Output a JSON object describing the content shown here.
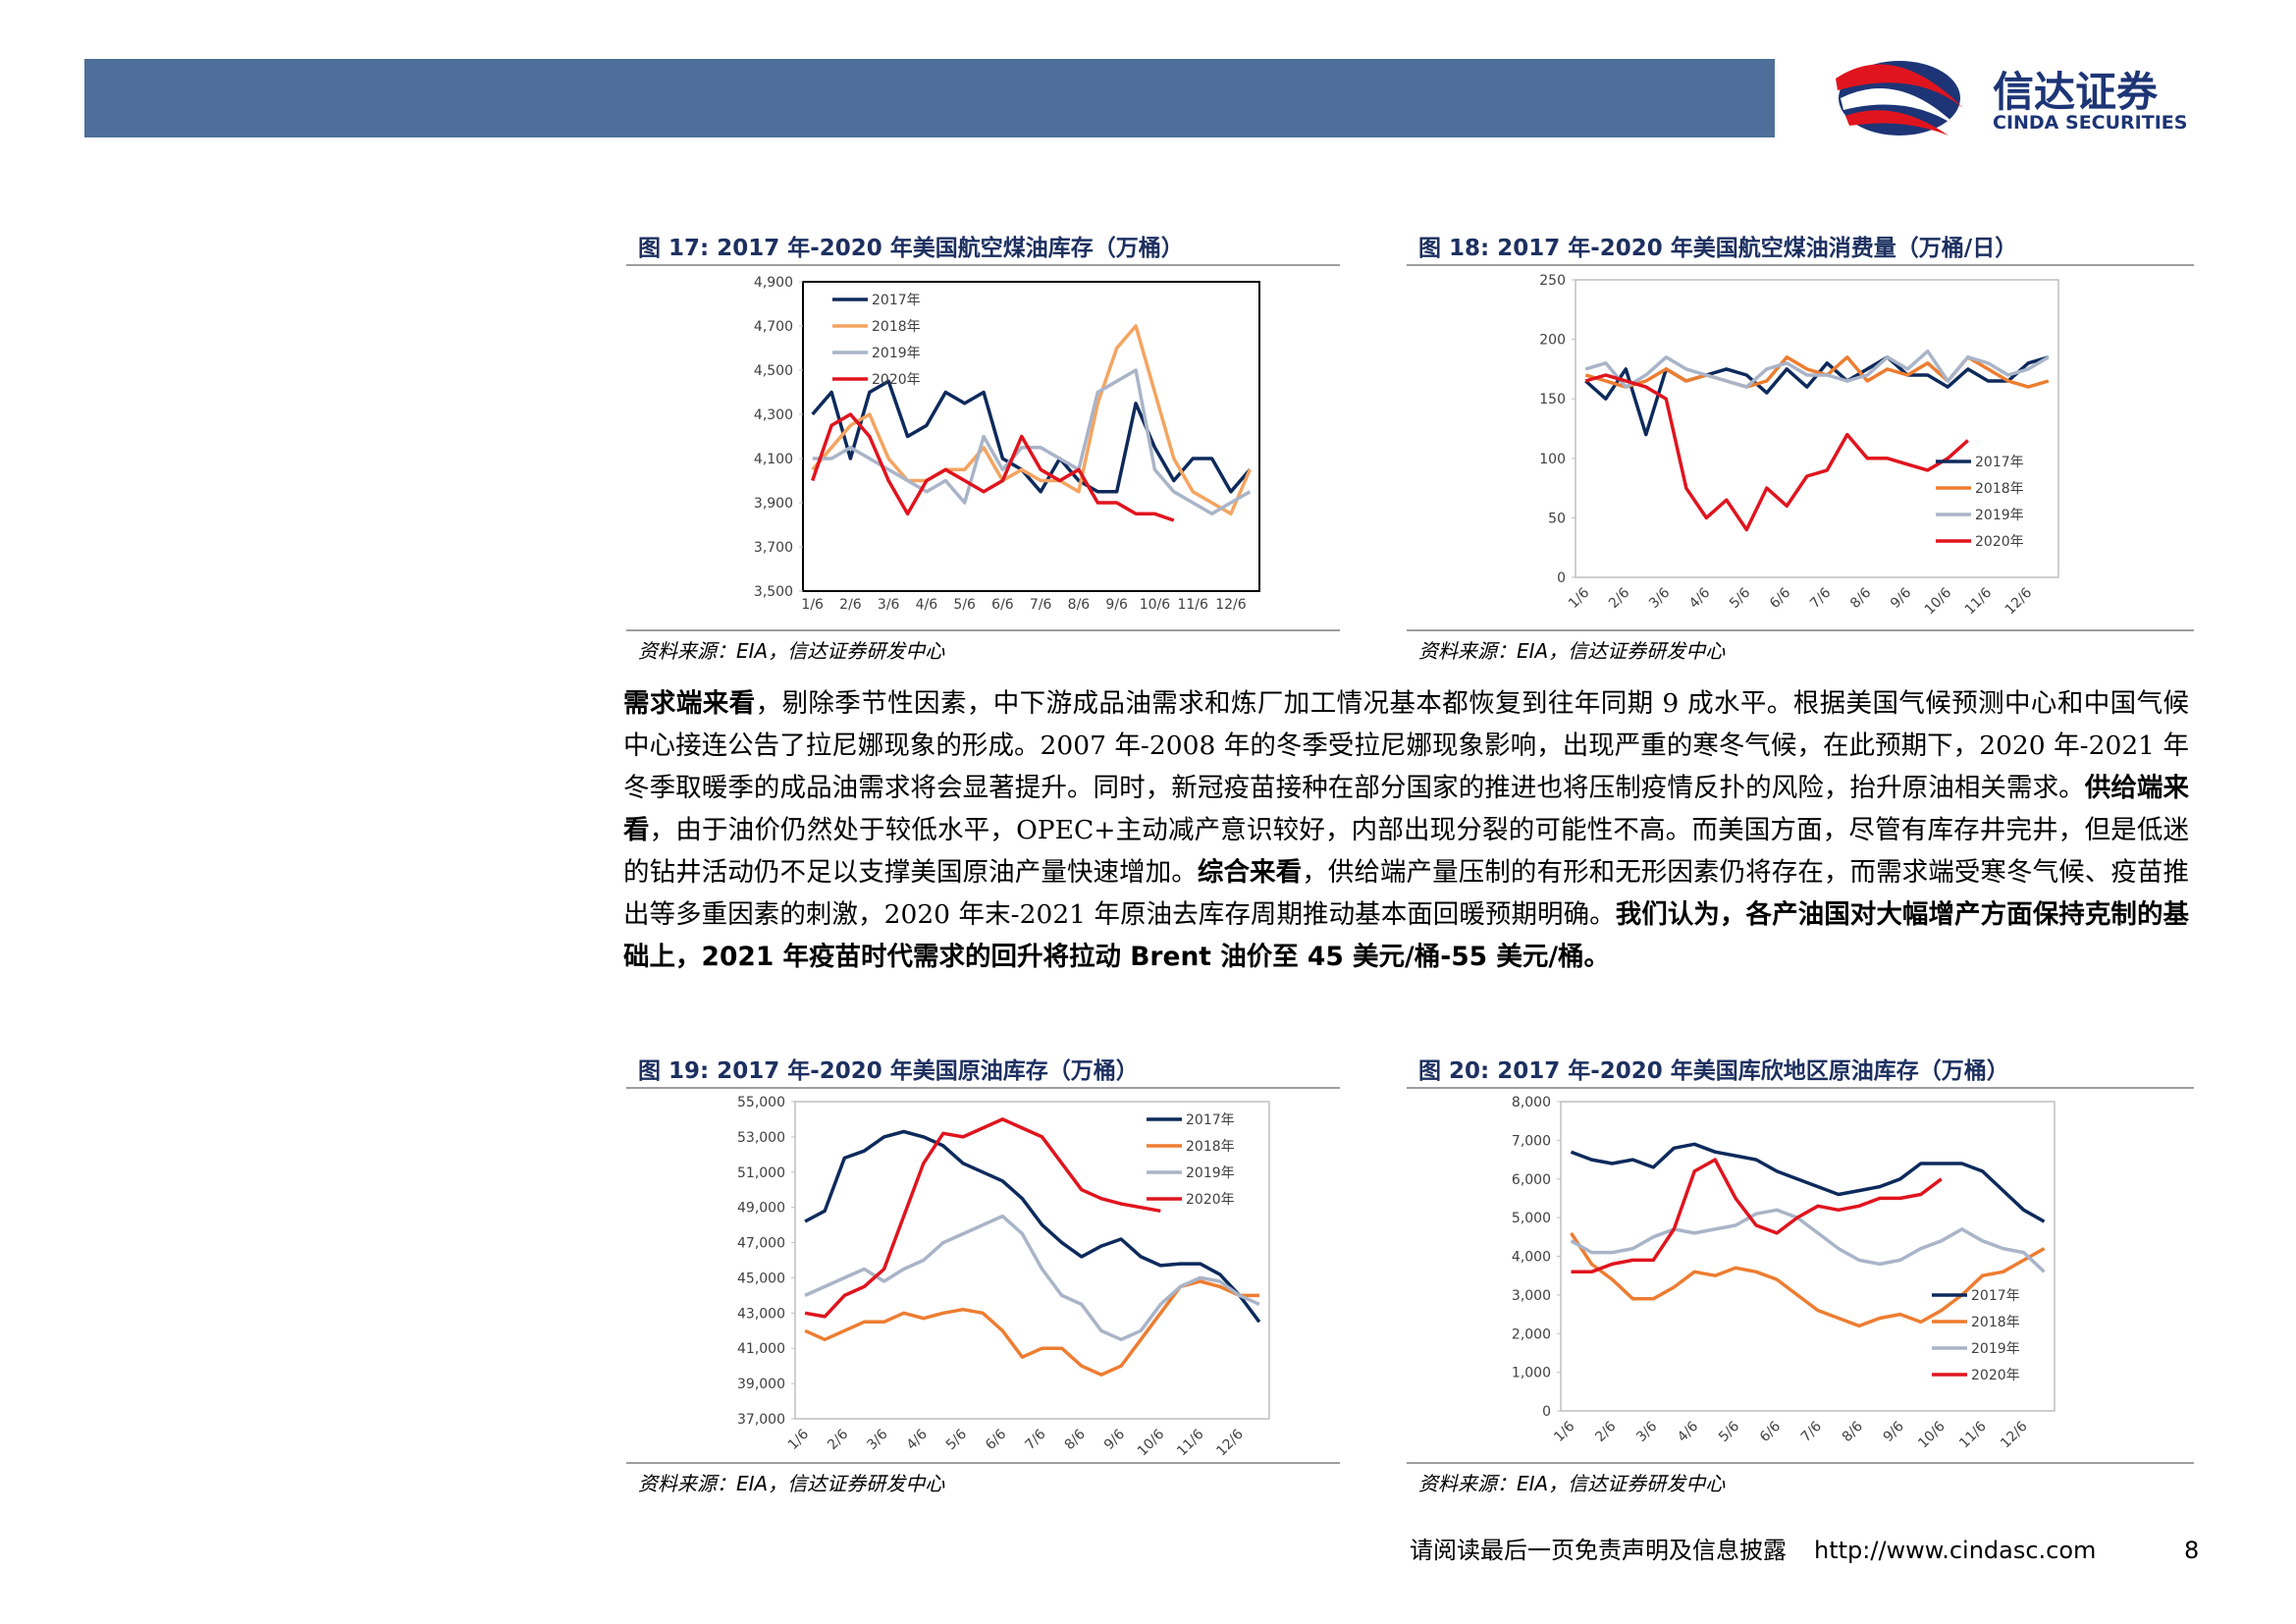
{
  "header": {
    "logo_cn": "信达证券",
    "logo_en": "CINDA SECURITIES"
  },
  "chart_data": [
    {
      "type": "line",
      "title": "图 17: 2017 年-2020 年美国航空煤油库存（万桶）",
      "source": "资料来源：EIA，信达证券研发中心",
      "legend": "upper left",
      "grid": false,
      "categories": [
        "1/6",
        null,
        "2/6",
        null,
        "3/6",
        null,
        "4/6",
        null,
        "5/6",
        null,
        "6/6",
        null,
        "7/6",
        null,
        "8/6",
        null,
        "9/6",
        null,
        "10/6",
        null,
        "11/6",
        null,
        "12/6",
        null
      ],
      "ylim": [
        3500,
        4900
      ],
      "yticks": [
        {
          "value": 3500,
          "label": "3,500"
        },
        {
          "value": 3700,
          "label": "3,700"
        },
        {
          "value": 3900,
          "label": "3,900"
        },
        {
          "value": 4100,
          "label": "4,100"
        },
        {
          "value": 4300,
          "label": "4,300"
        },
        {
          "value": 4500,
          "label": "4,500"
        },
        {
          "value": 4700,
          "label": "4,700"
        },
        {
          "value": 4900,
          "label": "4,900"
        }
      ],
      "series": [
        {
          "name": "2017年",
          "color": "#0d2a5c",
          "values": [
            4300,
            4400,
            4100,
            4400,
            4450,
            4200,
            4250,
            4400,
            4350,
            4400,
            4100,
            4050,
            3950,
            4100,
            4000,
            3950,
            3950,
            4350,
            4150,
            4000,
            4100,
            4100,
            3950,
            4050
          ]
        },
        {
          "name": "2018年",
          "color": "#f4a460",
          "values": [
            4050,
            4150,
            4250,
            4300,
            4100,
            4000,
            4000,
            4050,
            4050,
            4150,
            4000,
            4050,
            4000,
            4000,
            3950,
            4350,
            4600,
            4700,
            4400,
            4100,
            3950,
            3900,
            3850,
            4050
          ]
        },
        {
          "name": "2019年",
          "color": "#a9b4c8",
          "values": [
            4100,
            4100,
            4150,
            4100,
            4050,
            4000,
            3950,
            4000,
            3900,
            4200,
            4050,
            4150,
            4150,
            4100,
            4050,
            4400,
            4450,
            4500,
            4050,
            3950,
            3900,
            3850,
            3900,
            3950
          ]
        },
        {
          "name": "2020年",
          "color": "#e0141e",
          "values": [
            4000,
            4250,
            4300,
            4200,
            4000,
            3850,
            4000,
            4050,
            4000,
            3950,
            4000,
            4200,
            4050,
            4000,
            4050,
            3900,
            3900,
            3850,
            3850,
            3820,
            null,
            null,
            null,
            null
          ]
        }
      ]
    },
    {
      "type": "line",
      "title": "图 18: 2017 年-2020 年美国航空煤油消费量（万桶/日）",
      "source": "资料来源：EIA，信达证券研发中心",
      "legend": "lower right",
      "grid": false,
      "categories": [
        "1/6",
        null,
        "2/6",
        null,
        "3/6",
        null,
        "4/6",
        null,
        "5/6",
        null,
        "6/6",
        null,
        "7/6",
        null,
        "8/6",
        null,
        "9/6",
        null,
        "10/6",
        null,
        "11/6",
        null,
        "12/6",
        null
      ],
      "ylim": [
        0,
        250
      ],
      "yticks": [
        0,
        50,
        100,
        150,
        200,
        250
      ],
      "series": [
        {
          "name": "2017年",
          "color": "#0d2a5c",
          "values": [
            165,
            150,
            175,
            120,
            175,
            165,
            170,
            175,
            170,
            155,
            175,
            160,
            180,
            165,
            175,
            185,
            170,
            170,
            160,
            175,
            165,
            165,
            180,
            185
          ]
        },
        {
          "name": "2018年",
          "color": "#ed7d31",
          "values": [
            170,
            165,
            160,
            165,
            175,
            165,
            170,
            165,
            160,
            165,
            185,
            175,
            170,
            185,
            165,
            175,
            170,
            180,
            165,
            185,
            175,
            165,
            160,
            165
          ]
        },
        {
          "name": "2019年",
          "color": "#a9b4c8",
          "values": [
            175,
            180,
            160,
            170,
            185,
            175,
            170,
            165,
            160,
            175,
            180,
            170,
            170,
            165,
            170,
            185,
            175,
            190,
            165,
            185,
            180,
            170,
            175,
            185
          ]
        },
        {
          "name": "2020年",
          "color": "#e0141e",
          "values": [
            165,
            170,
            165,
            160,
            150,
            75,
            50,
            65,
            40,
            75,
            60,
            85,
            90,
            120,
            100,
            100,
            95,
            90,
            100,
            115,
            null,
            null,
            null,
            null
          ]
        }
      ]
    },
    {
      "type": "line",
      "title": "图 19: 2017 年-2020 年美国原油库存（万桶）",
      "source": "资料来源：EIA，信达证券研发中心",
      "legend": "upper right",
      "grid": false,
      "categories": [
        "1/6",
        null,
        "2/6",
        null,
        "3/6",
        null,
        "4/6",
        null,
        "5/6",
        null,
        "6/6",
        null,
        "7/6",
        null,
        "8/6",
        null,
        "9/6",
        null,
        "10/6",
        null,
        "11/6",
        null,
        "12/6",
        null
      ],
      "ylim": [
        37000,
        55000
      ],
      "yticks": [
        {
          "value": 37000,
          "label": "37,000"
        },
        {
          "value": 39000,
          "label": "39,000"
        },
        {
          "value": 41000,
          "label": "41,000"
        },
        {
          "value": 43000,
          "label": "43,000"
        },
        {
          "value": 45000,
          "label": "45,000"
        },
        {
          "value": 47000,
          "label": "47,000"
        },
        {
          "value": 49000,
          "label": "49,000"
        },
        {
          "value": 51000,
          "label": "51,000"
        },
        {
          "value": 53000,
          "label": "53,000"
        },
        {
          "value": 55000,
          "label": "55,000"
        }
      ],
      "series": [
        {
          "name": "2017年",
          "color": "#0d2a5c",
          "values": [
            48200,
            48800,
            51800,
            52200,
            53000,
            53300,
            53000,
            52500,
            51500,
            51000,
            50500,
            49500,
            48000,
            47000,
            46200,
            46800,
            47200,
            46200,
            45700,
            45800,
            45800,
            45200,
            44000,
            42500
          ]
        },
        {
          "name": "2018年",
          "color": "#ed7d31",
          "values": [
            42000,
            41500,
            42000,
            42500,
            42500,
            43000,
            42700,
            43000,
            43200,
            43000,
            42000,
            40500,
            41000,
            41000,
            40000,
            39500,
            40000,
            41500,
            43000,
            44500,
            44800,
            44500,
            44000,
            44000
          ]
        },
        {
          "name": "2019年",
          "color": "#a9b4c8",
          "values": [
            44000,
            44500,
            45000,
            45500,
            44800,
            45500,
            46000,
            47000,
            47500,
            48000,
            48500,
            47500,
            45500,
            44000,
            43500,
            42000,
            41500,
            42000,
            43500,
            44500,
            45000,
            44800,
            44000,
            43500
          ]
        },
        {
          "name": "2020年",
          "color": "#e0141e",
          "values": [
            43000,
            42800,
            44000,
            44500,
            45500,
            48500,
            51500,
            53200,
            53000,
            53500,
            54000,
            53500,
            53000,
            51500,
            50000,
            49500,
            49200,
            49000,
            48800,
            null,
            null,
            null,
            null,
            null
          ]
        }
      ]
    },
    {
      "type": "line",
      "title": "图 20: 2017 年-2020 年美国库欣地区原油库存（万桶）",
      "source": "资料来源：EIA，信达证券研发中心",
      "legend": "lower right",
      "grid": false,
      "categories": [
        "1/6",
        null,
        "2/6",
        null,
        "3/6",
        null,
        "4/6",
        null,
        "5/6",
        null,
        "6/6",
        null,
        "7/6",
        null,
        "8/6",
        null,
        "9/6",
        null,
        "10/6",
        null,
        "11/6",
        null,
        "12/6",
        null
      ],
      "ylim": [
        0,
        8000
      ],
      "yticks": [
        0,
        {
          "value": 1000,
          "label": "1,000"
        },
        {
          "value": 2000,
          "label": "2,000"
        },
        {
          "value": 3000,
          "label": "3,000"
        },
        {
          "value": 4000,
          "label": "4,000"
        },
        {
          "value": 5000,
          "label": "5,000"
        },
        {
          "value": 6000,
          "label": "6,000"
        },
        {
          "value": 7000,
          "label": "7,000"
        },
        {
          "value": 8000,
          "label": "8,000"
        }
      ],
      "series": [
        {
          "name": "2017年",
          "color": "#0d2a5c",
          "values": [
            6700,
            6500,
            6400,
            6500,
            6300,
            6800,
            6900,
            6700,
            6600,
            6500,
            6200,
            6000,
            5800,
            5600,
            5700,
            5800,
            6000,
            6400,
            6400,
            6400,
            6200,
            5700,
            5200,
            4900
          ]
        },
        {
          "name": "2018年",
          "color": "#ed7d31",
          "values": [
            4600,
            3800,
            3400,
            2900,
            2900,
            3200,
            3600,
            3500,
            3700,
            3600,
            3400,
            3000,
            2600,
            2400,
            2200,
            2400,
            2500,
            2300,
            2600,
            3000,
            3500,
            3600,
            3900,
            4200
          ]
        },
        {
          "name": "2019年",
          "color": "#a9b4c8",
          "values": [
            4400,
            4100,
            4100,
            4200,
            4500,
            4700,
            4600,
            4700,
            4800,
            5100,
            5200,
            5000,
            4600,
            4200,
            3900,
            3800,
            3900,
            4200,
            4400,
            4700,
            4400,
            4200,
            4100,
            3600
          ]
        },
        {
          "name": "2020年",
          "color": "#e0141e",
          "values": [
            3600,
            3600,
            3800,
            3900,
            3900,
            4700,
            6200,
            6500,
            5500,
            4800,
            4600,
            5000,
            5300,
            5200,
            5300,
            5500,
            5500,
            5600,
            6000,
            null,
            null,
            null,
            null,
            null
          ]
        }
      ]
    }
  ],
  "body": {
    "paragraph": [
      {
        "text": "需求端来看",
        "bold": true
      },
      {
        "text": "，剔除季节性因素，中下游成品油需求和炼厂加工情况基本都恢复到往年同期 9 成水平。根据美国气候预测中心和中国气候中心接连公告了拉尼娜现象的形成。2007 年-2008 年的冬季受拉尼娜现象影响，出现严重的寒冬气候，在此预期下，2020 年-2021 年冬季取暖季的成品油需求将会显著提升。同时，新冠疫苗接种在部分国家的推进也将压制疫情反扑的风险，抬升原油相关需求。",
        "bold": false
      },
      {
        "text": "供给端来看",
        "bold": true
      },
      {
        "text": "，由于油价仍然处于较低水平，OPEC+主动减产意识较好，内部出现分裂的可能性不高。而美国方面，尽管有库存井完井，但是低迷的钻井活动仍不足以支撑美国原油产量快速增加。",
        "bold": false
      },
      {
        "text": "综合来看",
        "bold": true
      },
      {
        "text": "，供给端产量压制的有形和无形因素仍将存在，而需求端受寒冬气候、疫苗推出等多重因素的刺激，2020 年末-2021 年原油去库存周期推动基本面回暖预期明确。",
        "bold": false
      },
      {
        "text": "我们认为，各产油国对大幅增产方面保持克制的基础上，2021 年疫苗时代需求的回升将拉动 Brent 油价至 45 美元/桶-55 美元/桶。",
        "bold": true
      }
    ]
  },
  "footer": {
    "disclaimer": "请阅读最后一页免责声明及信息披露",
    "url": "http://www.cindasc.com",
    "page": "8"
  }
}
